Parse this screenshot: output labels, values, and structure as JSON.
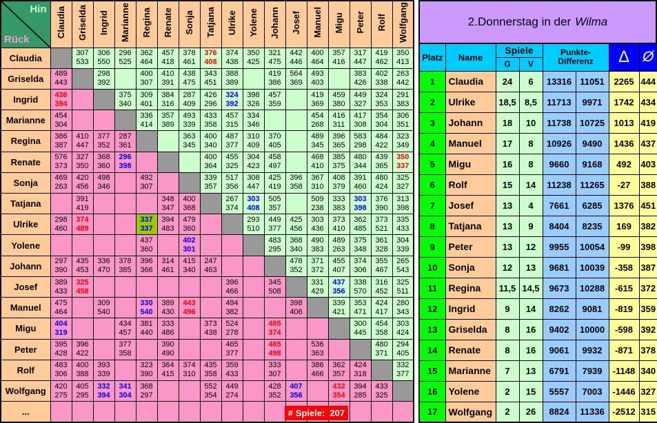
{
  "panel": {
    "title_prefix": "2.Donnerstag in der",
    "title_italic": "Wilma"
  },
  "games_counter": {
    "label": "# Spiele:",
    "value": "207"
  },
  "matrix": {
    "corner": {
      "hin": "Hin",
      "rueck": "Rück"
    },
    "ellipsis_label": "...",
    "players": [
      "Claudia",
      "Griselda",
      "Ingrid",
      "Marianne",
      "Regina",
      "Renate",
      "Sonja",
      "Tatjana",
      "Ulrike",
      "Yolene",
      "Johann",
      "Josef",
      "Manuel",
      "Migu",
      "Peter",
      "Rolf",
      "Wolfgang"
    ],
    "rows": [
      [
        "D",
        [
          "307",
          "533"
        ],
        [
          "306",
          "550"
        ],
        [
          "296",
          "525"
        ],
        [
          "362",
          "464"
        ],
        [
          "457",
          "418"
        ],
        [
          "378",
          "461"
        ],
        [
          "376",
          "408",
          "r"
        ],
        [
          "374",
          "438"
        ],
        [
          "350",
          "425"
        ],
        [
          "321",
          "475"
        ],
        [
          "442",
          "446"
        ],
        [
          "400",
          "464"
        ],
        [
          "357",
          "416"
        ],
        [
          "317",
          "447"
        ],
        [
          "419",
          "462"
        ],
        [
          "350",
          "413"
        ]
      ],
      [
        [
          "489",
          "443"
        ],
        "D",
        [
          "298",
          "392"
        ],
        null,
        [
          "400",
          "307"
        ],
        [
          "410",
          "391"
        ],
        [
          "438",
          "475"
        ],
        [
          "343",
          "451"
        ],
        [
          "388",
          "389"
        ],
        null,
        [
          "419",
          "386"
        ],
        [
          "564",
          "369"
        ],
        [
          "493",
          "403"
        ],
        null,
        [
          "383",
          "426"
        ],
        [
          "402",
          "338"
        ],
        [
          "263",
          "442"
        ]
      ],
      [
        [
          "436",
          "394",
          "r"
        ],
        null,
        "D",
        [
          "375",
          "340"
        ],
        [
          "309",
          "401"
        ],
        [
          "384",
          "316"
        ],
        [
          "287",
          "409"
        ],
        [
          "426",
          "296"
        ],
        [
          "324",
          "392",
          "b"
        ],
        [
          "398",
          "326"
        ],
        [
          "457",
          "359"
        ],
        null,
        [
          "419",
          "369"
        ],
        [
          "459",
          "380"
        ],
        [
          "449",
          "327"
        ],
        [
          "324",
          "353"
        ],
        [
          "291",
          "383"
        ]
      ],
      [
        [
          "454",
          "304"
        ],
        null,
        null,
        "D",
        [
          "336",
          "414"
        ],
        [
          "357",
          "389"
        ],
        [
          "493",
          "339"
        ],
        [
          "433",
          "358"
        ],
        [
          "457",
          "315"
        ],
        [
          "334",
          "346"
        ],
        null,
        null,
        [
          "454",
          "268"
        ],
        [
          "416",
          "311"
        ],
        [
          "417",
          "308"
        ],
        [
          "354",
          "304"
        ],
        [
          "306",
          "351"
        ]
      ],
      [
        [
          "386",
          "387"
        ],
        [
          "410",
          "447"
        ],
        [
          "377",
          "352"
        ],
        [
          "287",
          "361"
        ],
        "D",
        null,
        [
          "363",
          "345"
        ],
        [
          "400",
          "340"
        ],
        [
          "487",
          "377"
        ],
        [
          "310",
          "409"
        ],
        [
          "370",
          "405"
        ],
        null,
        [
          "489",
          "345"
        ],
        [
          "396",
          "365"
        ],
        [
          "583",
          "298"
        ],
        [
          "484",
          "422"
        ],
        [
          "323",
          "349"
        ]
      ],
      [
        [
          "576",
          "373"
        ],
        [
          "327",
          "350"
        ],
        [
          "368",
          "360"
        ],
        [
          "296",
          "398",
          "b"
        ],
        null,
        "D",
        null,
        [
          "400",
          "364"
        ],
        [
          "455",
          "325"
        ],
        [
          "304",
          "423"
        ],
        [
          "458",
          "497"
        ],
        null,
        [
          "468",
          "410"
        ],
        [
          "385",
          "375"
        ],
        [
          "480",
          "344"
        ],
        [
          "439",
          "365"
        ],
        [
          "350",
          "337",
          "r"
        ]
      ],
      [
        [
          "469",
          "263"
        ],
        [
          "420",
          "456"
        ],
        [
          "498",
          "346"
        ],
        null,
        [
          "492",
          "307"
        ],
        null,
        "D",
        [
          "339",
          "357"
        ],
        [
          "517",
          "356"
        ],
        [
          "308",
          "447"
        ],
        [
          "425",
          "419"
        ],
        [
          "396",
          "358"
        ],
        [
          "367",
          "310"
        ],
        [
          "408",
          "379"
        ],
        [
          "391",
          "460"
        ],
        [
          "480",
          "424"
        ],
        [
          "325",
          "327"
        ]
      ],
      [
        null,
        [
          "391",
          "419"
        ],
        null,
        null,
        null,
        [
          "348",
          "347"
        ],
        [
          "400",
          "368"
        ],
        "D",
        [
          "267",
          "374"
        ],
        [
          "303",
          "408",
          "b"
        ],
        [
          "505",
          "357"
        ],
        null,
        [
          "509",
          "238"
        ],
        [
          "333",
          "383"
        ],
        [
          "303",
          "398",
          "b"
        ],
        [
          "376",
          "390"
        ],
        [
          "313",
          "398"
        ]
      ],
      [
        [
          "298",
          "460"
        ],
        [
          "374",
          "489",
          "r"
        ],
        null,
        null,
        [
          "337",
          "337",
          "bo"
        ],
        [
          "394",
          "483"
        ],
        [
          "479",
          "360"
        ],
        null,
        "D",
        [
          "293",
          "510"
        ],
        [
          "449",
          "377"
        ],
        [
          "425",
          "456"
        ],
        [
          "303",
          "436"
        ],
        [
          "373",
          "410"
        ],
        [
          "362",
          "485"
        ],
        [
          "373",
          "521"
        ],
        [
          "335",
          "433"
        ]
      ],
      [
        null,
        null,
        null,
        null,
        [
          "437",
          "360"
        ],
        null,
        [
          "402",
          "301",
          "b"
        ],
        null,
        null,
        "D",
        [
          "483",
          "295"
        ],
        [
          "368",
          "340"
        ],
        [
          "490",
          "383"
        ],
        [
          "489",
          "263"
        ],
        [
          "375",
          "348"
        ],
        [
          "361",
          "328"
        ],
        [
          "304",
          "339"
        ]
      ],
      [
        [
          "297",
          "390"
        ],
        [
          "435",
          "453"
        ],
        [
          "336",
          "470"
        ],
        [
          "378",
          "385"
        ],
        [
          "396",
          "366"
        ],
        [
          "314",
          "461"
        ],
        [
          "415",
          "340"
        ],
        [
          "247",
          "463"
        ],
        null,
        null,
        "D",
        [
          "478",
          "352"
        ],
        [
          "371",
          "372"
        ],
        [
          "455",
          "407"
        ],
        [
          "374",
          "306"
        ],
        [
          "355",
          "467"
        ],
        [
          "265",
          "543"
        ]
      ],
      [
        [
          "389",
          "433"
        ],
        [
          "325",
          "458",
          "r"
        ],
        null,
        null,
        null,
        null,
        null,
        null,
        [
          "396",
          "466"
        ],
        null,
        [
          "345",
          "508"
        ],
        "D",
        [
          "331",
          "429"
        ],
        [
          "437",
          "356",
          "b"
        ],
        [
          "338",
          "570"
        ],
        [
          "316",
          "452"
        ],
        [
          "325",
          "511"
        ]
      ],
      [
        [
          "475",
          "464"
        ],
        null,
        [
          "309",
          "540"
        ],
        null,
        [
          "330",
          "540",
          "b"
        ],
        [
          "389",
          "430"
        ],
        [
          "443",
          "496",
          "r"
        ],
        null,
        [
          "494",
          "382"
        ],
        null,
        null,
        [
          "398",
          "406"
        ],
        "D",
        [
          "339",
          "421"
        ],
        [
          "353",
          "471"
        ],
        [
          "424",
          "417"
        ],
        [
          "280",
          "343"
        ]
      ],
      [
        [
          "404",
          "319",
          "b"
        ],
        null,
        null,
        [
          "434",
          "457"
        ],
        [
          "381",
          "440"
        ],
        [
          "333",
          "486"
        ],
        null,
        [
          "373",
          "438"
        ],
        [
          "524",
          "278"
        ],
        null,
        [
          "485",
          "374",
          "r"
        ],
        null,
        null,
        "D",
        [
          "300",
          "445"
        ],
        [
          "454",
          "358"
        ],
        [
          "303",
          "424"
        ]
      ],
      [
        [
          "395",
          "428"
        ],
        [
          "396",
          "422"
        ],
        null,
        [
          "377",
          "358"
        ],
        null,
        [
          "390",
          "490"
        ],
        null,
        null,
        [
          "465",
          "377"
        ],
        null,
        [
          "485",
          "498",
          "r"
        ],
        null,
        [
          "536",
          "363"
        ],
        null,
        "D",
        [
          "480",
          "371"
        ],
        [
          "294",
          "405"
        ]
      ],
      [
        [
          "483",
          "306"
        ],
        [
          "400",
          "388"
        ],
        [
          "393",
          "339"
        ],
        null,
        [
          "323",
          "390"
        ],
        [
          "364",
          "415"
        ],
        [
          "374",
          "310"
        ],
        [
          "435",
          "358"
        ],
        [
          "359",
          "433"
        ],
        null,
        [
          "333",
          "307"
        ],
        null,
        [
          "386",
          "466"
        ],
        [
          "362",
          "357"
        ],
        [
          "424",
          "318"
        ],
        "D",
        [
          "332",
          "377"
        ]
      ],
      [
        [
          "420",
          "275"
        ],
        [
          "405",
          "295"
        ],
        [
          "332",
          "394",
          "b"
        ],
        [
          "341",
          "304",
          "b"
        ],
        [
          "368",
          "297"
        ],
        null,
        null,
        [
          "552",
          "354"
        ],
        [
          "449",
          "274"
        ],
        null,
        [
          "428",
          "352"
        ],
        [
          "407",
          "356",
          "b"
        ],
        null,
        [
          "432",
          "354",
          "r"
        ],
        [
          "394",
          "285"
        ],
        [
          "433",
          "325"
        ],
        "D"
      ]
    ]
  },
  "standings": {
    "headers": {
      "platz": "Platz",
      "name": "Name",
      "spiele": "Spiele",
      "g": "G",
      "v": "V",
      "punkte": "Punkte-",
      "differenz": "Differenz",
      "delta": "Δ",
      "avg": "Ø"
    },
    "rows": [
      [
        "1",
        "Claudia",
        "24",
        "6",
        "13316",
        "11051",
        "2265",
        "444"
      ],
      [
        "2",
        "Ulrike",
        "18,5",
        "8,5",
        "11713",
        "9971",
        "1742",
        "434"
      ],
      [
        "3",
        "Johann",
        "18",
        "10",
        "11738",
        "10725",
        "1013",
        "419"
      ],
      [
        "4",
        "Manuel",
        "17",
        "8",
        "10926",
        "9490",
        "1436",
        "437"
      ],
      [
        "5",
        "Migu",
        "16",
        "8",
        "9660",
        "9168",
        "492",
        "403"
      ],
      [
        "6",
        "Rolf",
        "15",
        "14",
        "11238",
        "11265",
        "-27",
        "388"
      ],
      [
        "7",
        "Josef",
        "13",
        "4",
        "7661",
        "6285",
        "1376",
        "451"
      ],
      [
        "8",
        "Tatjana",
        "13",
        "9",
        "8404",
        "8235",
        "169",
        "382"
      ],
      [
        "9",
        "Peter",
        "13",
        "12",
        "9955",
        "10054",
        "-99",
        "398"
      ],
      [
        "10",
        "Sonja",
        "12",
        "13",
        "9681",
        "10039",
        "-358",
        "387"
      ],
      [
        "11",
        "Regina",
        "11,5",
        "14,5",
        "9673",
        "10288",
        "-615",
        "372"
      ],
      [
        "12",
        "Ingrid",
        "9",
        "14",
        "8262",
        "9081",
        "-819",
        "359"
      ],
      [
        "13",
        "Griselda",
        "8",
        "16",
        "9402",
        "10000",
        "-598",
        "392"
      ],
      [
        "14",
        "Renate",
        "8",
        "16",
        "9061",
        "9932",
        "-871",
        "378"
      ],
      [
        "15",
        "Marianne",
        "7",
        "13",
        "6791",
        "7939",
        "-1148",
        "340"
      ],
      [
        "16",
        "Yolene",
        "2",
        "15",
        "5557",
        "7003",
        "-1446",
        "327"
      ],
      [
        "17",
        "Wolfgang",
        "2",
        "26",
        "8824",
        "11336",
        "-2512",
        "315"
      ]
    ]
  },
  "colors": {
    "tan_header": "#FFCC99",
    "upper_cell_green": "#CCFFCC",
    "lower_cell_pink": "#FA96C8",
    "diagonal_gray": "#999999",
    "highlight_olive": "#99CC00",
    "corner_green": "#339966",
    "title_lavender": "#CC99FF",
    "table_header_cyan": "#00CCFF",
    "delta_header_blue": "#0000FF",
    "platz_green": "#00FF00",
    "points_blue": "#99CCFF",
    "delta_yellow": "#FFFF99",
    "badge_red": "#FF0000",
    "text_red": "#FF0000",
    "text_blue": "#0000FF"
  }
}
